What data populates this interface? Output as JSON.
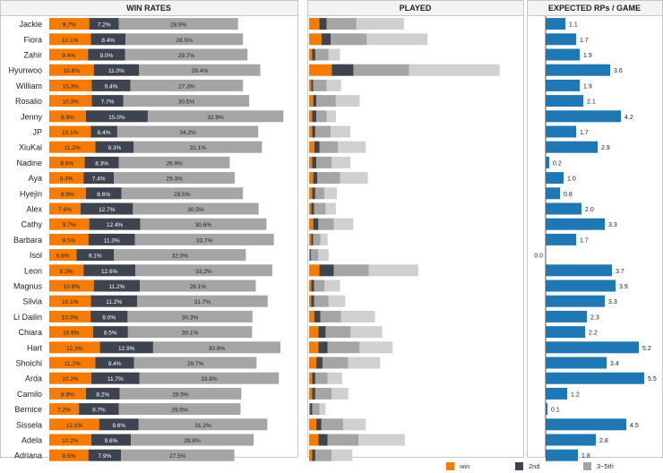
{
  "chart_data": [
    {
      "type": "bar",
      "title": "WIN RATES",
      "stacked": true,
      "unit": "%",
      "categories": [
        "Jackie",
        "Fiora",
        "Zahir",
        "Hyunwoo",
        "William",
        "Rosalio",
        "Jenny",
        "JP",
        "XiuKai",
        "Nadine",
        "Aya",
        "Hyejin",
        "Alex",
        "Cathy",
        "Barbara",
        "Isol",
        "Leon",
        "Magnus",
        "Silvia",
        "Li Dailin",
        "Chiara",
        "Hart",
        "Shoichi",
        "Arda",
        "Camilo",
        "Bernice",
        "Sissela",
        "Adela",
        "Adriana"
      ],
      "series": [
        {
          "name": "win",
          "color": "#f57c00",
          "values": [
            9.7,
            10.1,
            9.4,
            10.8,
            10.3,
            10.3,
            8.9,
            10.1,
            11.2,
            8.6,
            8.3,
            8.9,
            7.6,
            9.7,
            9.5,
            6.6,
            8.3,
            10.8,
            10.1,
            10.0,
            10.6,
            12.3,
            11.2,
            10.2,
            8.9,
            7.2,
            12.1,
            10.2,
            9.5
          ]
        },
        {
          "name": "2nd",
          "color": "#3d4450",
          "values": [
            7.2,
            8.4,
            9.0,
            11.0,
            9.4,
            7.7,
            15.0,
            6.4,
            9.3,
            8.3,
            7.4,
            8.6,
            12.7,
            12.4,
            11.3,
            9.1,
            12.6,
            11.2,
            11.2,
            9.0,
            8.5,
            12.9,
            9.4,
            11.7,
            8.2,
            9.7,
            9.6,
            9.6,
            7.9
          ]
        },
        {
          "name": "3~5th",
          "color": "#a5a5a5",
          "values": [
            28.9,
            28.5,
            29.7,
            29.4,
            27.3,
            30.5,
            32.9,
            34.2,
            31.1,
            26.9,
            29.3,
            29.5,
            30.5,
            30.6,
            33.7,
            32.0,
            33.2,
            28.1,
            31.7,
            30.3,
            30.1,
            30.9,
            29.7,
            33.8,
            29.5,
            29.5,
            31.2,
            29.8,
            27.5
          ]
        }
      ],
      "xlim": [
        0,
        60
      ],
      "legend": "bottom"
    },
    {
      "type": "bar",
      "title": "PLAYED",
      "stacked": true,
      "categories": [
        "Jackie",
        "Fiora",
        "Zahir",
        "Hyunwoo",
        "William",
        "Rosalio",
        "Jenny",
        "JP",
        "XiuKai",
        "Nadine",
        "Aya",
        "Hyejin",
        "Alex",
        "Cathy",
        "Barbara",
        "Isol",
        "Leon",
        "Magnus",
        "Silvia",
        "Li Dailin",
        "Chiara",
        "Hart",
        "Shoichi",
        "Arda",
        "Camilo",
        "Bernice",
        "Sissela",
        "Adela",
        "Adriana"
      ],
      "series": [
        {
          "name": "win",
          "color": "#f57c00",
          "values": [
            10,
            12,
            3,
            22,
            2,
            4,
            3,
            3,
            5,
            3,
            4,
            3,
            2,
            4,
            2,
            1,
            10,
            2,
            2,
            5,
            9,
            9,
            7,
            3,
            3,
            1,
            7,
            9,
            3
          ]
        },
        {
          "name": "2nd",
          "color": "#3d4450",
          "values": [
            7,
            9,
            3,
            21,
            2,
            3,
            4,
            3,
            5,
            4,
            4,
            3,
            3,
            5,
            2,
            1,
            14,
            3,
            3,
            6,
            7,
            9,
            6,
            3,
            3,
            2,
            5,
            9,
            3
          ]
        },
        {
          "name": "3~5th",
          "color": "#a5a5a5",
          "values": [
            29,
            35,
            13,
            54,
            13,
            19,
            10,
            15,
            18,
            15,
            22,
            9,
            11,
            15,
            7,
            7,
            34,
            10,
            14,
            20,
            24,
            31,
            25,
            12,
            16,
            7,
            21,
            30,
            16
          ]
        },
        {
          "name": "other",
          "color": "#d0d0d0",
          "values": [
            46,
            59,
            11,
            88,
            14,
            23,
            9,
            19,
            27,
            18,
            27,
            12,
            10,
            19,
            7,
            10,
            48,
            15,
            16,
            33,
            31,
            32,
            31,
            14,
            16,
            6,
            22,
            45,
            20
          ]
        }
      ],
      "legend": "none"
    },
    {
      "type": "bar",
      "title": "EXPECTED RPs / GAME",
      "categories": [
        "Jackie",
        "Fiora",
        "Zahir",
        "Hyunwoo",
        "William",
        "Rosalio",
        "Jenny",
        "JP",
        "XiuKai",
        "Nadine",
        "Aya",
        "Hyejin",
        "Alex",
        "Cathy",
        "Barbara",
        "Isol",
        "Leon",
        "Magnus",
        "Silvia",
        "Li Dailin",
        "Chiara",
        "Hart",
        "Shoichi",
        "Arda",
        "Camilo",
        "Bernice",
        "Sissela",
        "Adela",
        "Adriana"
      ],
      "series": [
        {
          "color": "#1f77b4",
          "values": [
            1.1,
            1.7,
            1.9,
            3.6,
            1.9,
            2.1,
            4.2,
            1.7,
            2.9,
            0.2,
            1.0,
            0.8,
            2.0,
            3.3,
            1.7,
            0.0,
            3.7,
            3.9,
            3.3,
            2.3,
            2.2,
            5.2,
            3.4,
            5.5,
            1.2,
            0.1,
            4.5,
            2.8,
            1.8
          ]
        }
      ],
      "value_labels": [
        "1.1",
        "1.7",
        "1.9",
        "3.6",
        "1.9",
        "2.1",
        "4.2",
        "1.7",
        "2.9",
        "0.2",
        "1.0",
        "0.8",
        "2.0",
        "3.3",
        "1.7",
        "0.0",
        "3.7",
        "3.9",
        "3.3",
        "2.3",
        "2.2",
        "5.2",
        "3.4",
        "5.5",
        "1.2",
        "0.1",
        "4.5",
        "2.8",
        "1.8"
      ],
      "xlim": [
        0,
        6.4
      ],
      "legend": "none"
    }
  ],
  "legend_items": [
    {
      "label": "win",
      "color": "#f57c00"
    },
    {
      "label": "2nd",
      "color": "#3d4450"
    },
    {
      "label": "3~5th",
      "color": "#a5a5a5"
    }
  ]
}
